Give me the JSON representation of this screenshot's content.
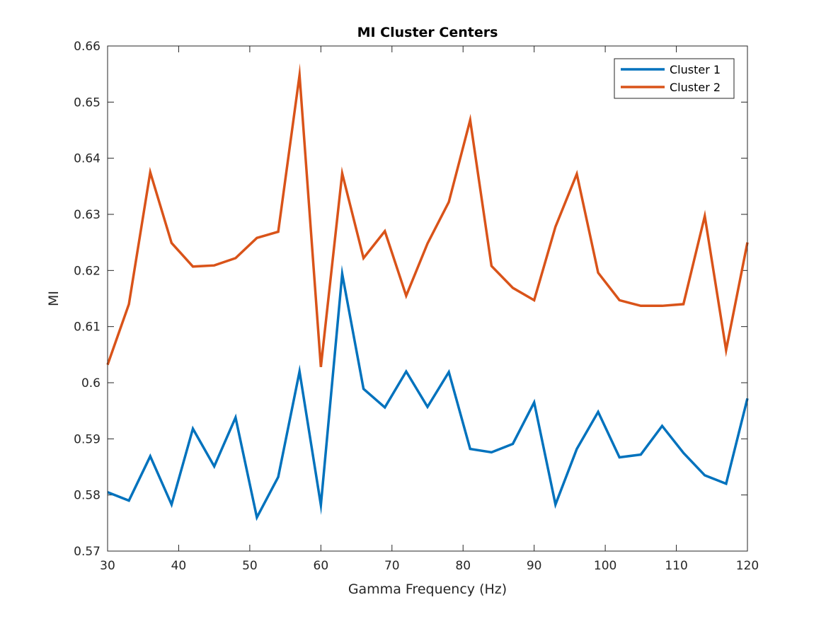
{
  "chart_data": {
    "type": "line",
    "title": "MI Cluster Centers",
    "xlabel": "Gamma Frequency (Hz)",
    "ylabel": "MI",
    "xlim": [
      30,
      120
    ],
    "ylim": [
      0.57,
      0.66
    ],
    "xticks": [
      30,
      40,
      50,
      60,
      70,
      80,
      90,
      100,
      110,
      120
    ],
    "xtick_labels": [
      "30",
      "40",
      "50",
      "60",
      "70",
      "80",
      "90",
      "100",
      "110",
      "120"
    ],
    "yticks": [
      0.57,
      0.58,
      0.59,
      0.6,
      0.61,
      0.62,
      0.63,
      0.64,
      0.65,
      0.66
    ],
    "ytick_labels": [
      "0.57",
      "0.58",
      "0.59",
      "0.6",
      "0.61",
      "0.62",
      "0.63",
      "0.64",
      "0.65",
      "0.66"
    ],
    "grid": false,
    "legend_position": "top-right",
    "x": [
      30,
      33,
      36,
      39,
      42,
      45,
      48,
      51,
      54,
      57,
      60,
      63,
      66,
      69,
      72,
      75,
      78,
      81,
      84,
      87,
      90,
      93,
      96,
      99,
      102,
      105,
      108,
      111,
      114,
      117,
      120
    ],
    "series": [
      {
        "name": "Cluster 1",
        "color": "#0072bd",
        "values": [
          0.5805,
          0.579,
          0.5869,
          0.5783,
          0.5918,
          0.5851,
          0.5938,
          0.576,
          0.5832,
          0.602,
          0.5782,
          0.6194,
          0.5989,
          0.5956,
          0.602,
          0.5957,
          0.6019,
          0.5882,
          0.5876,
          0.5891,
          0.5965,
          0.5783,
          0.5882,
          0.5948,
          0.5867,
          0.5872,
          0.5923,
          0.5875,
          0.5835,
          0.582,
          0.5972
        ]
      },
      {
        "name": "Cluster 2",
        "color": "#d95319",
        "values": [
          0.6032,
          0.614,
          0.6375,
          0.6249,
          0.6207,
          0.6209,
          0.6222,
          0.6258,
          0.6269,
          0.6548,
          0.6028,
          0.6373,
          0.6222,
          0.627,
          0.6155,
          0.6248,
          0.6322,
          0.6468,
          0.6208,
          0.6169,
          0.6147,
          0.6278,
          0.6372,
          0.6196,
          0.6147,
          0.6137,
          0.6137,
          0.614,
          0.6297,
          0.6058,
          0.625
        ]
      }
    ]
  }
}
